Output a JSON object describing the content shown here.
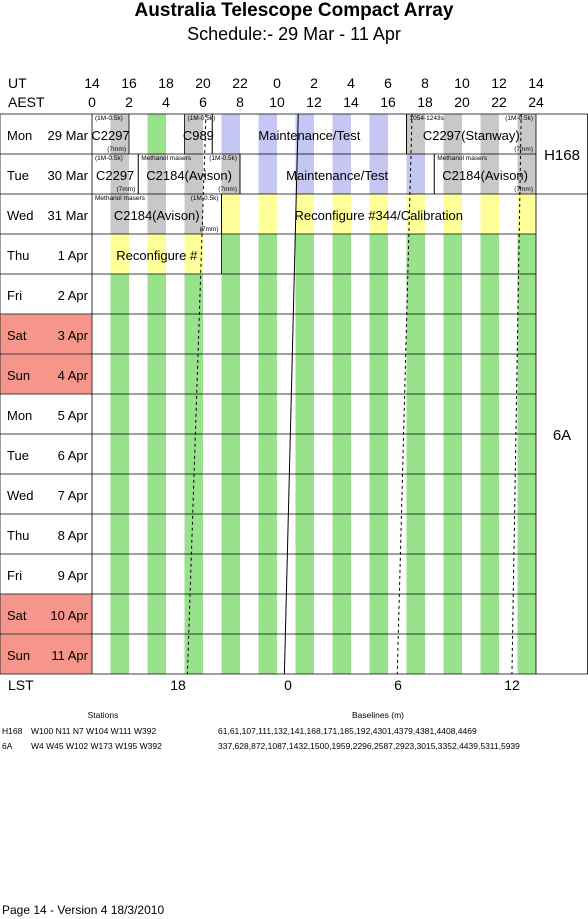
{
  "title": "Australia Telescope Compact Array",
  "subtitle": "Schedule:- 29 Mar - 11 Apr",
  "header": {
    "ut_label": "UT",
    "aest_label": "AEST",
    "ut_ticks": [
      "14",
      "16",
      "18",
      "20",
      "22",
      "0",
      "2",
      "4",
      "6",
      "8",
      "10",
      "12",
      "14"
    ],
    "aest_ticks": [
      "0",
      "2",
      "4",
      "6",
      "8",
      "10",
      "12",
      "14",
      "16",
      "18",
      "20",
      "22",
      "24"
    ]
  },
  "days": [
    {
      "dow": "Mon",
      "date": "29 Mar",
      "weekend": false
    },
    {
      "dow": "Tue",
      "date": "30 Mar",
      "weekend": false
    },
    {
      "dow": "Wed",
      "date": "31 Mar",
      "weekend": false
    },
    {
      "dow": "Thu",
      "date": "1 Apr",
      "weekend": false
    },
    {
      "dow": "Fri",
      "date": "2 Apr",
      "weekend": false
    },
    {
      "dow": "Sat",
      "date": "3 Apr",
      "weekend": true
    },
    {
      "dow": "Sun",
      "date": "4 Apr",
      "weekend": true
    },
    {
      "dow": "Mon",
      "date": "5 Apr",
      "weekend": false
    },
    {
      "dow": "Tue",
      "date": "6 Apr",
      "weekend": false
    },
    {
      "dow": "Wed",
      "date": "7 Apr",
      "weekend": false
    },
    {
      "dow": "Thu",
      "date": "8 Apr",
      "weekend": false
    },
    {
      "dow": "Fri",
      "date": "9 Apr",
      "weekend": false
    },
    {
      "dow": "Sat",
      "date": "10 Apr",
      "weekend": true
    },
    {
      "dow": "Sun",
      "date": "11 Apr",
      "weekend": true
    }
  ],
  "configs": [
    {
      "name": "H168",
      "first_day": 0,
      "last_day": 1
    },
    {
      "name": "6A",
      "first_day": 2,
      "last_day": 13
    }
  ],
  "blocks": [
    {
      "day": 0,
      "start": 0,
      "end": 2,
      "label": "C2297",
      "top_note": "(1M-0.5k)",
      "bottom_note": "(7mm)"
    },
    {
      "day": 0,
      "start": 5,
      "end": 6.5,
      "label": "C989",
      "top_note": "(1M-0.5k)",
      "bottom_note": ""
    },
    {
      "day": 0,
      "start": 6.5,
      "end": 17,
      "label": "Maintenance/Test",
      "top_note": "",
      "bottom_note": ""
    },
    {
      "day": 0,
      "start": 17,
      "end": 24,
      "label": "C2297(Stanway)",
      "top_note": "1054-1243s",
      "top_note2": "(1M-0.5k)",
      "bottom_note": "(7mm)"
    },
    {
      "day": 1,
      "start": 0,
      "end": 2.5,
      "label": "C2297",
      "top_note": "(1M-0.5k)",
      "bottom_note": "(7mm)"
    },
    {
      "day": 1,
      "start": 2.5,
      "end": 8,
      "label": "C2184(Avison)",
      "top_note": "Methanol masers",
      "top_note2": "(1M-0.5k)",
      "bottom_note": "(7mm)"
    },
    {
      "day": 1,
      "start": 8,
      "end": 18.5,
      "label": "Maintenance/Test",
      "top_note": "",
      "bottom_note": ""
    },
    {
      "day": 1,
      "start": 18.5,
      "end": 24,
      "label": "C2184(Avison)",
      "top_note": "Methanol masers",
      "top_note2": "",
      "bottom_note": "(7mm)"
    },
    {
      "day": 2,
      "start": 0,
      "end": 7,
      "label": "C2184(Avison)",
      "top_note": "Methanol masers",
      "top_note2": "(1M-0.5k)",
      "bottom_note": "(7mm)"
    },
    {
      "day": 2,
      "start": 7,
      "end": 24,
      "label": "Reconfigure #344/Calibration",
      "top_note": "",
      "bottom_note": ""
    },
    {
      "day": 3,
      "start": 0,
      "end": 7,
      "label": "Reconfigure #",
      "top_note": "",
      "bottom_note": ""
    }
  ],
  "lst": {
    "label": "LST",
    "ticks": [
      "18",
      "0",
      "6",
      "12"
    ]
  },
  "stations": {
    "heading": "Stations",
    "rows": [
      {
        "config": "H168",
        "list": "W100 N11 N7 W104 W111 W392"
      },
      {
        "config": "6A",
        "list": "W4 W45 W102 W173 W195 W392"
      }
    ]
  },
  "baselines": {
    "heading": "Baselines (m)",
    "rows": [
      {
        "config": "H168",
        "list": "61,61,107,111,132,141,168,171,185,192,4301,4379,4381,4408,4469"
      },
      {
        "config": "6A",
        "list": "337,628,872,1087,1432,1500,1959,2296,2587,2923,3015,3352,4439,5311,5939"
      }
    ]
  },
  "footer": "Page 14 - Version 4  18/3/2010",
  "colors": {
    "green": "#99e28c",
    "grey": "#c8c8c8",
    "lavender": "#c6c6f4",
    "yellow": "#ffff99",
    "weekend": "#f6958a",
    "white": "#ffffff"
  }
}
